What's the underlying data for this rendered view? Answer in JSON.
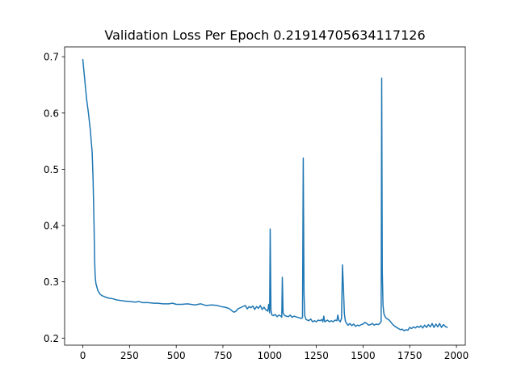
{
  "chart_data": {
    "type": "line",
    "title": "Validation Loss Per Epoch 0.21914705634117126",
    "xlabel": "",
    "ylabel": "",
    "xlim": [
      -97.5,
      2047.5
    ],
    "ylim": [
      0.1875,
      0.7175
    ],
    "xticks": [
      0,
      250,
      500,
      750,
      1000,
      1250,
      1500,
      1750,
      2000
    ],
    "xtick_labels": [
      "0",
      "250",
      "500",
      "750",
      "1000",
      "1250",
      "1500",
      "1750",
      "2000"
    ],
    "yticks": [
      0.2,
      0.3,
      0.4,
      0.5,
      0.6,
      0.7
    ],
    "ytick_labels": [
      "0.2",
      "0.3",
      "0.4",
      "0.5",
      "0.6",
      "0.7"
    ],
    "grid": false,
    "legend": "none",
    "color": "#1f77b4",
    "series": [
      {
        "points": [
          [
            0,
            0.695
          ],
          [
            10,
            0.66
          ],
          [
            20,
            0.625
          ],
          [
            30,
            0.6
          ],
          [
            40,
            0.57
          ],
          [
            50,
            0.53
          ],
          [
            55,
            0.48
          ],
          [
            60,
            0.4
          ],
          [
            63,
            0.34
          ],
          [
            66,
            0.31
          ],
          [
            70,
            0.297
          ],
          [
            80,
            0.285
          ],
          [
            90,
            0.279
          ],
          [
            100,
            0.276
          ],
          [
            120,
            0.273
          ],
          [
            140,
            0.271
          ],
          [
            160,
            0.27
          ],
          [
            180,
            0.268
          ],
          [
            200,
            0.267
          ],
          [
            220,
            0.266
          ],
          [
            250,
            0.265
          ],
          [
            280,
            0.264
          ],
          [
            300,
            0.265
          ],
          [
            320,
            0.263
          ],
          [
            350,
            0.263
          ],
          [
            380,
            0.262
          ],
          [
            400,
            0.262
          ],
          [
            430,
            0.261
          ],
          [
            460,
            0.261
          ],
          [
            480,
            0.262
          ],
          [
            500,
            0.26
          ],
          [
            530,
            0.26
          ],
          [
            560,
            0.261
          ],
          [
            600,
            0.259
          ],
          [
            630,
            0.261
          ],
          [
            660,
            0.258
          ],
          [
            690,
            0.259
          ],
          [
            720,
            0.258
          ],
          [
            740,
            0.256
          ],
          [
            760,
            0.255
          ],
          [
            780,
            0.253
          ],
          [
            790,
            0.251
          ],
          [
            800,
            0.248
          ],
          [
            810,
            0.246
          ],
          [
            820,
            0.248
          ],
          [
            830,
            0.252
          ],
          [
            850,
            0.255
          ],
          [
            870,
            0.258
          ],
          [
            880,
            0.252
          ],
          [
            890,
            0.256
          ],
          [
            900,
            0.254
          ],
          [
            910,
            0.257
          ],
          [
            920,
            0.251
          ],
          [
            930,
            0.256
          ],
          [
            940,
            0.253
          ],
          [
            950,
            0.258
          ],
          [
            960,
            0.251
          ],
          [
            970,
            0.255
          ],
          [
            980,
            0.25
          ],
          [
            990,
            0.248
          ],
          [
            995,
            0.26
          ],
          [
            1000,
            0.245
          ],
          [
            1003,
            0.394
          ],
          [
            1007,
            0.25
          ],
          [
            1012,
            0.241
          ],
          [
            1020,
            0.24
          ],
          [
            1030,
            0.242
          ],
          [
            1040,
            0.238
          ],
          [
            1050,
            0.241
          ],
          [
            1060,
            0.239
          ],
          [
            1065,
            0.237
          ],
          [
            1068,
            0.308
          ],
          [
            1072,
            0.245
          ],
          [
            1080,
            0.24
          ],
          [
            1090,
            0.239
          ],
          [
            1100,
            0.238
          ],
          [
            1110,
            0.241
          ],
          [
            1120,
            0.237
          ],
          [
            1130,
            0.239
          ],
          [
            1140,
            0.238
          ],
          [
            1150,
            0.237
          ],
          [
            1160,
            0.236
          ],
          [
            1170,
            0.235
          ],
          [
            1176,
            0.237
          ],
          [
            1180,
            0.52
          ],
          [
            1184,
            0.28
          ],
          [
            1188,
            0.24
          ],
          [
            1195,
            0.233
          ],
          [
            1210,
            0.231
          ],
          [
            1220,
            0.234
          ],
          [
            1230,
            0.229
          ],
          [
            1240,
            0.231
          ],
          [
            1250,
            0.229
          ],
          [
            1260,
            0.232
          ],
          [
            1270,
            0.231
          ],
          [
            1280,
            0.233
          ],
          [
            1285,
            0.229
          ],
          [
            1290,
            0.239
          ],
          [
            1295,
            0.229
          ],
          [
            1310,
            0.232
          ],
          [
            1320,
            0.229
          ],
          [
            1330,
            0.231
          ],
          [
            1340,
            0.229
          ],
          [
            1350,
            0.232
          ],
          [
            1360,
            0.231
          ],
          [
            1365,
            0.241
          ],
          [
            1370,
            0.232
          ],
          [
            1378,
            0.229
          ],
          [
            1385,
            0.235
          ],
          [
            1390,
            0.33
          ],
          [
            1395,
            0.29
          ],
          [
            1400,
            0.244
          ],
          [
            1405,
            0.231
          ],
          [
            1410,
            0.227
          ],
          [
            1420,
            0.223
          ],
          [
            1430,
            0.226
          ],
          [
            1440,
            0.222
          ],
          [
            1450,
            0.225
          ],
          [
            1460,
            0.221
          ],
          [
            1470,
            0.223
          ],
          [
            1480,
            0.222
          ],
          [
            1490,
            0.224
          ],
          [
            1500,
            0.225
          ],
          [
            1510,
            0.228
          ],
          [
            1520,
            0.226
          ],
          [
            1530,
            0.223
          ],
          [
            1540,
            0.224
          ],
          [
            1550,
            0.226
          ],
          [
            1560,
            0.223
          ],
          [
            1570,
            0.225
          ],
          [
            1580,
            0.224
          ],
          [
            1590,
            0.226
          ],
          [
            1597,
            0.23
          ],
          [
            1600,
            0.662
          ],
          [
            1603,
            0.32
          ],
          [
            1607,
            0.258
          ],
          [
            1612,
            0.243
          ],
          [
            1620,
            0.237
          ],
          [
            1630,
            0.234
          ],
          [
            1640,
            0.232
          ],
          [
            1650,
            0.228
          ],
          [
            1660,
            0.224
          ],
          [
            1670,
            0.221
          ],
          [
            1680,
            0.219
          ],
          [
            1690,
            0.217
          ],
          [
            1700,
            0.215
          ],
          [
            1710,
            0.216
          ],
          [
            1720,
            0.213
          ],
          [
            1730,
            0.215
          ],
          [
            1740,
            0.214
          ],
          [
            1750,
            0.219
          ],
          [
            1760,
            0.217
          ],
          [
            1770,
            0.22
          ],
          [
            1780,
            0.218
          ],
          [
            1790,
            0.221
          ],
          [
            1800,
            0.219
          ],
          [
            1810,
            0.222
          ],
          [
            1820,
            0.218
          ],
          [
            1830,
            0.223
          ],
          [
            1840,
            0.219
          ],
          [
            1850,
            0.224
          ],
          [
            1860,
            0.22
          ],
          [
            1870,
            0.226
          ],
          [
            1880,
            0.219
          ],
          [
            1890,
            0.225
          ],
          [
            1900,
            0.22
          ],
          [
            1910,
            0.226
          ],
          [
            1920,
            0.219
          ],
          [
            1930,
            0.224
          ],
          [
            1940,
            0.221
          ],
          [
            1950,
            0.219
          ]
        ]
      }
    ]
  }
}
